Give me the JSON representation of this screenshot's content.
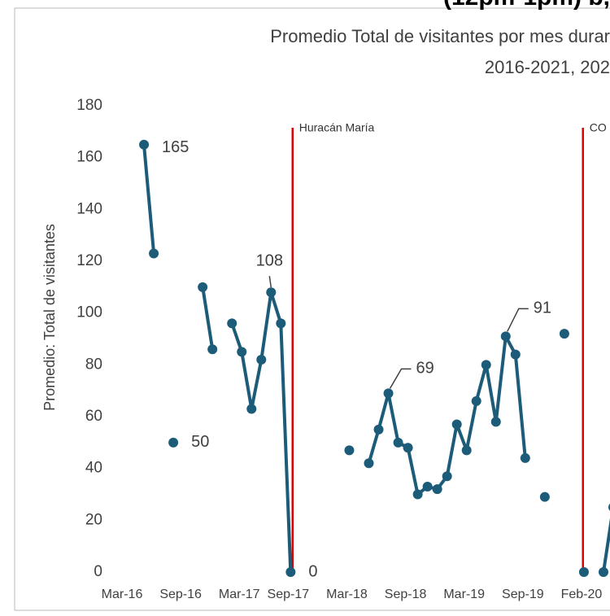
{
  "chart_data": {
    "type": "line",
    "header": "(12pm-1pm) b,",
    "title": "Promedio Total de visitantes por mes durar",
    "subtitle": "2016-2021, 202",
    "y_label": "Promedio: Total de visitantes",
    "categories": [
      "Mar-16",
      null,
      null,
      null,
      null,
      null,
      "Sep-16",
      null,
      null,
      null,
      null,
      null,
      "Mar-17",
      null,
      null,
      null,
      null,
      "Sep-17",
      null,
      null,
      null,
      null,
      null,
      "Mar-18",
      null,
      null,
      null,
      null,
      null,
      "Sep-18",
      null,
      null,
      null,
      null,
      null,
      "Mar-19",
      null,
      null,
      null,
      null,
      null,
      "Sep-19",
      null,
      null,
      null,
      null,
      null,
      "Feb-20",
      null,
      null,
      null
    ],
    "values": [
      null,
      null,
      165,
      123,
      null,
      50,
      null,
      null,
      110,
      86,
      null,
      96,
      85,
      63,
      82,
      108,
      96,
      0,
      null,
      null,
      null,
      null,
      null,
      47,
      null,
      42,
      55,
      69,
      50,
      48,
      30,
      33,
      32,
      37,
      57,
      47,
      66,
      80,
      58,
      91,
      84,
      44,
      null,
      29,
      null,
      92,
      null,
      0,
      null,
      0,
      25
    ],
    "value_labels": [
      null,
      null,
      "165",
      null,
      null,
      "50",
      null,
      null,
      null,
      null,
      null,
      null,
      null,
      null,
      null,
      "108",
      null,
      "0",
      null,
      null,
      null,
      null,
      null,
      null,
      null,
      null,
      null,
      "69",
      null,
      null,
      null,
      null,
      null,
      null,
      null,
      null,
      null,
      null,
      null,
      "91",
      null,
      null,
      null,
      null,
      null,
      null,
      null,
      null,
      null,
      null,
      null
    ],
    "color": "#1d5c78",
    "ylim": [
      0,
      180
    ],
    "yticks": [
      0,
      20,
      40,
      60,
      80,
      100,
      120,
      140,
      160,
      180
    ],
    "annotations": [
      {
        "label": "Huracán María",
        "x": 17.2,
        "color": "#e00000"
      },
      {
        "label": "CO",
        "x": 46.9,
        "color": "#e00000"
      }
    ]
  }
}
